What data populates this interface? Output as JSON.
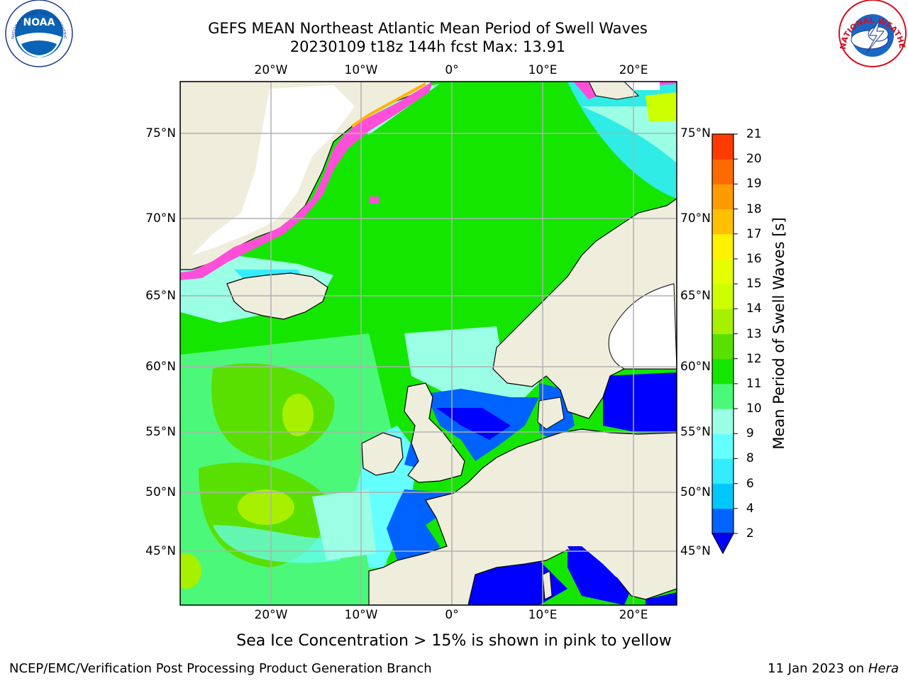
{
  "header": {
    "title_line1": "GEFS MEAN Northeast Atlantic Mean Period of Swell Waves",
    "title_line2": "20230109 t18z 144h fcst   Max: 13.91"
  },
  "logos": {
    "left": {
      "name": "noaa-logo",
      "text": "NOAA",
      "ring_text": "NATIONAL OCEANIC AND ATMOSPHERIC ADMINISTRATION · U.S. DEPARTMENT OF COMMERCE"
    },
    "right": {
      "name": "nws-logo",
      "ring_text": "NATIONAL WEATHER SERVICE"
    }
  },
  "map": {
    "lon_ticks": [
      "20°W",
      "10°W",
      "0°",
      "10°E",
      "20°E"
    ],
    "lat_ticks": [
      "75°N",
      "70°N",
      "65°N",
      "60°N",
      "55°N",
      "50°N",
      "45°N"
    ],
    "colors": {
      "land": "#efeedd",
      "ice_free_land": "#ffffff",
      "grid": "#b0b0b0",
      "coast": "#000000"
    }
  },
  "colorbar": {
    "label": "Mean Period of Swell Waves [s]",
    "ticks": [
      "2",
      "4",
      "6",
      "8",
      "9",
      "10",
      "11",
      "12",
      "13",
      "14",
      "15",
      "16",
      "17",
      "18",
      "19",
      "20",
      "21"
    ],
    "colors": [
      "#0062ff",
      "#00c8ff",
      "#33ecff",
      "#66ffff",
      "#9bffe6",
      "#4cf87a",
      "#14e600",
      "#5ae000",
      "#a6f000",
      "#cdff00",
      "#e6ff00",
      "#fff200",
      "#ffc000",
      "#ff9a00",
      "#ff6a00",
      "#ff3a00",
      "#ff0000"
    ],
    "under_color": "#0000ff"
  },
  "footer": {
    "note": "Sea Ice Concentration > 15% is shown in pink to yellow",
    "credit_left": "NCEP/EMC/Verification Post Processing Product Generation Branch",
    "credit_right_date": "11 Jan 2023 on",
    "credit_right_host": "Hera"
  }
}
